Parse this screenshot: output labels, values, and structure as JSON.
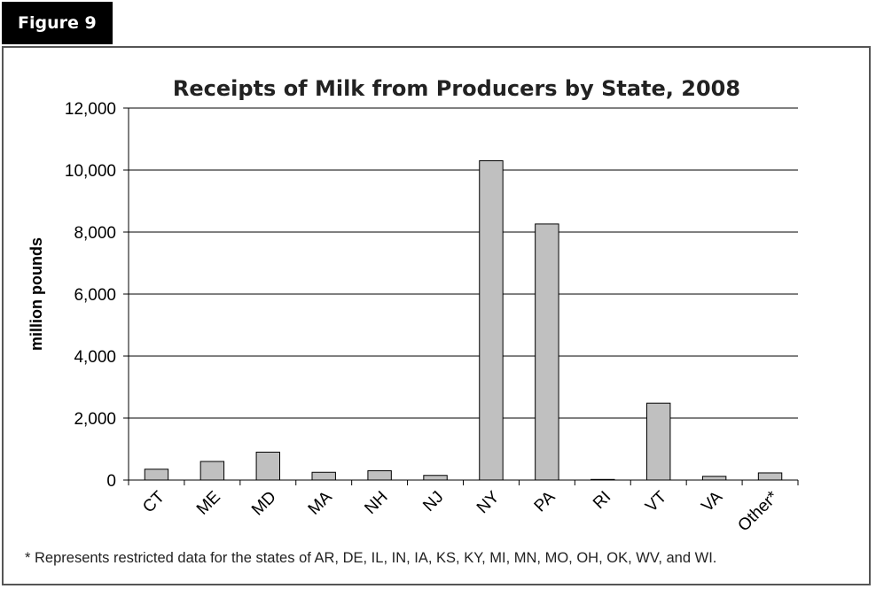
{
  "figure_label": "Figure 9",
  "footnote": "* Represents restricted data for the states of AR, DE, IL, IN, IA, KS, KY, MI, MN, MO, OH, OK, WV, and WI.",
  "chart_data": {
    "type": "bar",
    "title": "Receipts of Milk from Producers by State, 2008",
    "xlabel": "",
    "ylabel": "million pounds",
    "categories": [
      "CT",
      "ME",
      "MD",
      "MA",
      "NH",
      "NJ",
      "NY",
      "PA",
      "RI",
      "VT",
      "VA",
      "Other*"
    ],
    "values": [
      350,
      600,
      900,
      250,
      300,
      150,
      10300,
      8260,
      20,
      2480,
      120,
      230
    ],
    "ylim": [
      0,
      12000
    ],
    "yticks": [
      0,
      2000,
      4000,
      6000,
      8000,
      10000,
      12000
    ],
    "ytick_labels": [
      "0",
      "2,000",
      "4,000",
      "6,000",
      "8,000",
      "10,000",
      "12,000"
    ],
    "grid": true,
    "bar_color": "#c0c0c0",
    "bar_edge_color": "#000000"
  }
}
